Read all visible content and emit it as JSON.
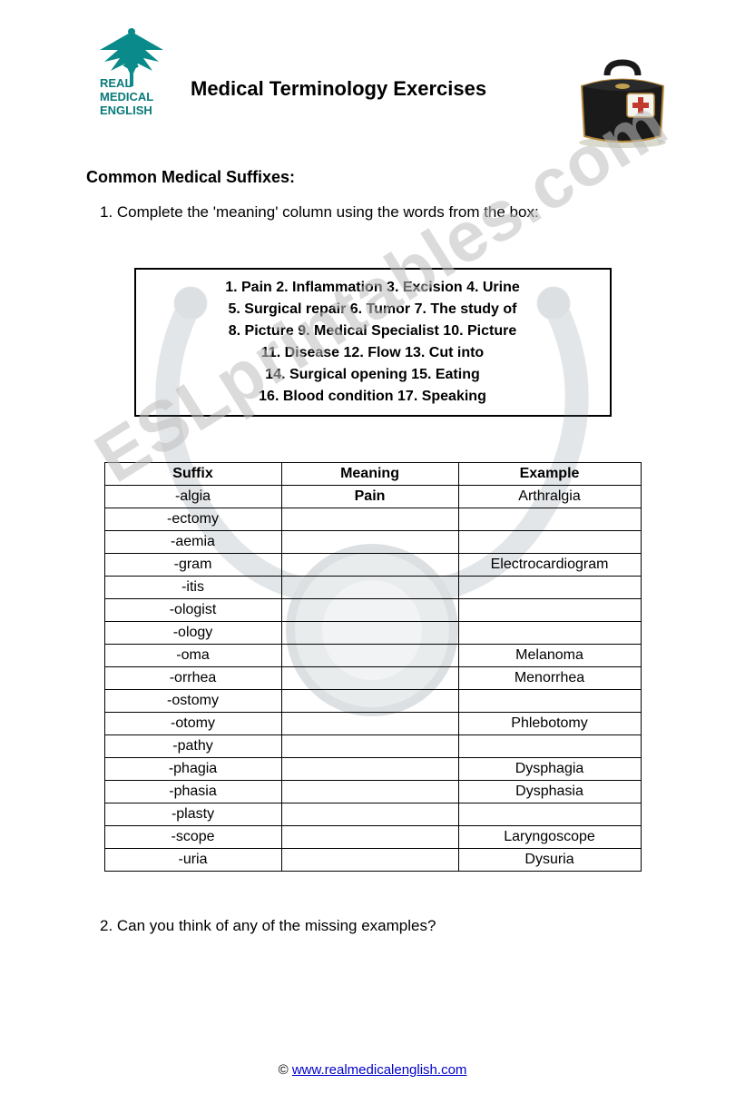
{
  "logo": {
    "line1": "REAL",
    "line2": "MEDICAL",
    "line3": "ENGLISH",
    "text_color": "#0a7a7a",
    "caduceus_color": "#0a8a8a",
    "wing_color": "#0a8a8a"
  },
  "title": "Medical Terminology Exercises",
  "subtitle": "Common Medical Suffixes:",
  "instruction": "1. Complete the 'meaning' column using the words from the box:",
  "question2": "2. Can you think of any of the missing examples?",
  "wordbox": {
    "lines": [
      "1. Pain   2. Inflammation   3. Excision   4. Urine",
      "5. Surgical repair   6. Tumor   7. The study of",
      "8. Picture   9. Medical Specialist   10. Picture",
      "11. Disease   12. Flow   13. Cut into",
      "14. Surgical opening   15. Eating",
      "16. Blood condition   17. Speaking"
    ],
    "border_color": "#000000",
    "font_weight": "bold"
  },
  "table": {
    "headers": [
      "Suffix",
      "Meaning",
      "Example"
    ],
    "col_widths": [
      "33%",
      "33%",
      "34%"
    ],
    "rows": [
      {
        "suffix": "-algia",
        "meaning": "Pain",
        "example": "Arthralgia",
        "meaning_bold": true
      },
      {
        "suffix": "-ectomy",
        "meaning": "",
        "example": ""
      },
      {
        "suffix": "-aemia",
        "meaning": "",
        "example": ""
      },
      {
        "suffix": "-gram",
        "meaning": "",
        "example": "Electrocardiogram"
      },
      {
        "suffix": "-itis",
        "meaning": "",
        "example": ""
      },
      {
        "suffix": "-ologist",
        "meaning": "",
        "example": ""
      },
      {
        "suffix": "-ology",
        "meaning": "",
        "example": ""
      },
      {
        "suffix": "-oma",
        "meaning": "",
        "example": "Melanoma"
      },
      {
        "suffix": "-orrhea",
        "meaning": "",
        "example": "Menorrhea"
      },
      {
        "suffix": "-ostomy",
        "meaning": "",
        "example": ""
      },
      {
        "suffix": "-otomy",
        "meaning": "",
        "example": "Phlebotomy"
      },
      {
        "suffix": "-pathy",
        "meaning": "",
        "example": ""
      },
      {
        "suffix": "-phagia",
        "meaning": "",
        "example": "Dysphagia"
      },
      {
        "suffix": "-phasia",
        "meaning": "",
        "example": "Dysphasia"
      },
      {
        "suffix": "-plasty",
        "meaning": "",
        "example": ""
      },
      {
        "suffix": "-scope",
        "meaning": "",
        "example": "Laryngoscope"
      },
      {
        "suffix": "-uria",
        "meaning": "",
        "example": "Dysuria"
      }
    ],
    "border_color": "#000000"
  },
  "watermark": {
    "text": "ESLprintables.com",
    "color": "#bfbfbf",
    "opacity": 0.55,
    "rotation_deg": -32,
    "fontsize": 78
  },
  "footer": {
    "copyright": "©",
    "link_text": "www.realmedicalenglish.com",
    "link_color": "#0000cc"
  },
  "bag": {
    "body_color": "#1a1a1a",
    "cross_bg": "#f5f5f0",
    "cross_color": "#c23a2e",
    "outline_color": "#b88a3a"
  },
  "stethoscope_bg": {
    "color": "#9aa8b0",
    "opacity": 0.18
  }
}
